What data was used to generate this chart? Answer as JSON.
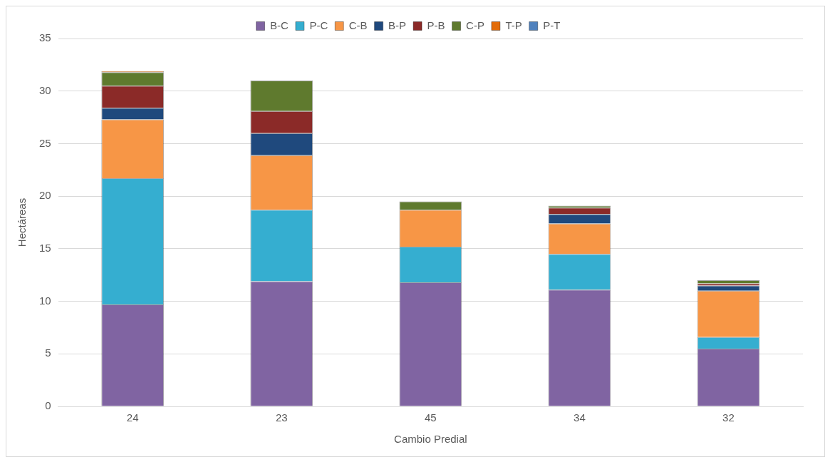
{
  "chart_data": {
    "type": "bar",
    "stacked": true,
    "xlabel": "Cambio Predial",
    "ylabel": "Hectáreas",
    "categories": [
      "24",
      "23",
      "45",
      "34",
      "32"
    ],
    "series": [
      {
        "name": "B-C",
        "color": "#8064a2",
        "values": [
          9.7,
          11.9,
          11.8,
          11.1,
          5.5
        ]
      },
      {
        "name": "P-C",
        "color": "#35aed0",
        "values": [
          12.0,
          6.8,
          3.4,
          3.4,
          1.1
        ]
      },
      {
        "name": "C-B",
        "color": "#f79646",
        "values": [
          5.6,
          5.2,
          3.5,
          2.9,
          4.4
        ]
      },
      {
        "name": "B-P",
        "color": "#1f497d",
        "values": [
          1.1,
          2.1,
          null,
          0.9,
          0.5
        ]
      },
      {
        "name": "P-B",
        "color": "#8b2a28",
        "values": [
          2.1,
          2.1,
          null,
          0.6,
          0.2
        ]
      },
      {
        "name": "C-P",
        "color": "#5f7a2e",
        "values": [
          1.3,
          2.9,
          0.8,
          0.2,
          0.3
        ]
      },
      {
        "name": "T-P",
        "color": "#e36c09",
        "values": [
          0.1,
          null,
          null,
          null,
          null
        ]
      },
      {
        "name": "P-T",
        "color": "#4f81bd",
        "values": [
          null,
          null,
          null,
          null,
          null
        ]
      }
    ],
    "ylim": [
      0,
      35
    ],
    "yticks": [
      0,
      5,
      10,
      15,
      20,
      25,
      30,
      35
    ],
    "grid": "y",
    "legend": "top"
  }
}
